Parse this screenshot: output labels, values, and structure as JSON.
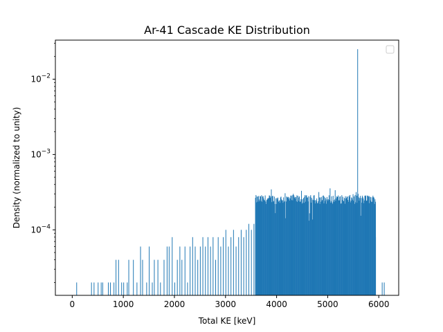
{
  "chart_data": {
    "type": "bar",
    "title": "Ar-41 Cascade KE Distribution",
    "xlabel": "Total KE [keV]",
    "ylabel": "Density (normalized to unity)",
    "xlim": [
      -330,
      6390
    ],
    "ylim": [
      1.35e-05,
      0.033
    ],
    "yscale": "log",
    "bin_width_kev": 10,
    "x_ticks": [
      0,
      1000,
      2000,
      3000,
      4000,
      5000,
      6000
    ],
    "x_tick_labels": [
      "0",
      "1000",
      "2000",
      "3000",
      "4000",
      "5000",
      "6000"
    ],
    "y_ticks": [
      0.0001,
      0.001,
      0.01
    ],
    "y_tick_labels": [
      "10^-4",
      "10^-3",
      "10^-2"
    ],
    "grid": false,
    "legend": "top-right (empty)",
    "bar_color": "#1f77b4",
    "histogram_bins": {
      "sparse_region_x_range_kev": [
        0,
        3580
      ],
      "dense_region_x_range_kev": [
        3580,
        5940
      ],
      "dense_plateau_density": 0.00025,
      "peak": {
        "x": 5580,
        "density": 0.025
      },
      "edge_bins": [
        {
          "x": 5930,
          "density": 8e-05
        },
        {
          "x": 6060,
          "density": 2e-05
        },
        {
          "x": 6100,
          "density": 2e-05
        }
      ]
    },
    "values": [
      {
        "x": 80,
        "y": 2e-05
      },
      {
        "x": 370,
        "y": 2e-05
      },
      {
        "x": 420,
        "y": 2e-05
      },
      {
        "x": 500,
        "y": 2e-05
      },
      {
        "x": 560,
        "y": 2e-05
      },
      {
        "x": 590,
        "y": 2e-05
      },
      {
        "x": 700,
        "y": 2e-05
      },
      {
        "x": 740,
        "y": 2e-05
      },
      {
        "x": 810,
        "y": 2e-05
      },
      {
        "x": 850,
        "y": 4e-05
      },
      {
        "x": 900,
        "y": 4e-05
      },
      {
        "x": 960,
        "y": 2e-05
      },
      {
        "x": 1000,
        "y": 2e-05
      },
      {
        "x": 1070,
        "y": 2e-05
      },
      {
        "x": 1100,
        "y": 4e-05
      },
      {
        "x": 1190,
        "y": 4e-05
      },
      {
        "x": 1260,
        "y": 2e-05
      },
      {
        "x": 1330,
        "y": 6e-05
      },
      {
        "x": 1370,
        "y": 4e-05
      },
      {
        "x": 1450,
        "y": 2e-05
      },
      {
        "x": 1500,
        "y": 6e-05
      },
      {
        "x": 1560,
        "y": 2e-05
      },
      {
        "x": 1600,
        "y": 4e-05
      },
      {
        "x": 1670,
        "y": 4e-05
      },
      {
        "x": 1720,
        "y": 2e-05
      },
      {
        "x": 1790,
        "y": 4e-05
      },
      {
        "x": 1850,
        "y": 6e-05
      },
      {
        "x": 1890,
        "y": 6e-05
      },
      {
        "x": 1950,
        "y": 8e-05
      },
      {
        "x": 2000,
        "y": 2e-05
      },
      {
        "x": 2050,
        "y": 4e-05
      },
      {
        "x": 2100,
        "y": 6e-05
      },
      {
        "x": 2140,
        "y": 4e-05
      },
      {
        "x": 2200,
        "y": 6e-05
      },
      {
        "x": 2250,
        "y": 2e-05
      },
      {
        "x": 2300,
        "y": 6e-05
      },
      {
        "x": 2350,
        "y": 8e-05
      },
      {
        "x": 2400,
        "y": 6e-05
      },
      {
        "x": 2450,
        "y": 4e-05
      },
      {
        "x": 2500,
        "y": 6e-05
      },
      {
        "x": 2550,
        "y": 8e-05
      },
      {
        "x": 2600,
        "y": 6e-05
      },
      {
        "x": 2650,
        "y": 8e-05
      },
      {
        "x": 2700,
        "y": 6e-05
      },
      {
        "x": 2750,
        "y": 8e-05
      },
      {
        "x": 2800,
        "y": 4e-05
      },
      {
        "x": 2850,
        "y": 8e-05
      },
      {
        "x": 2900,
        "y": 6e-05
      },
      {
        "x": 2950,
        "y": 8e-05
      },
      {
        "x": 3000,
        "y": 0.0001
      },
      {
        "x": 3050,
        "y": 6e-05
      },
      {
        "x": 3100,
        "y": 8e-05
      },
      {
        "x": 3150,
        "y": 0.0001
      },
      {
        "x": 3200,
        "y": 6e-05
      },
      {
        "x": 3250,
        "y": 8e-05
      },
      {
        "x": 3300,
        "y": 0.0001
      },
      {
        "x": 3350,
        "y": 8e-05
      },
      {
        "x": 3400,
        "y": 0.0001
      },
      {
        "x": 3450,
        "y": 0.00012
      },
      {
        "x": 3500,
        "y": 0.0001
      },
      {
        "x": 3550,
        "y": 0.00012
      }
    ]
  }
}
